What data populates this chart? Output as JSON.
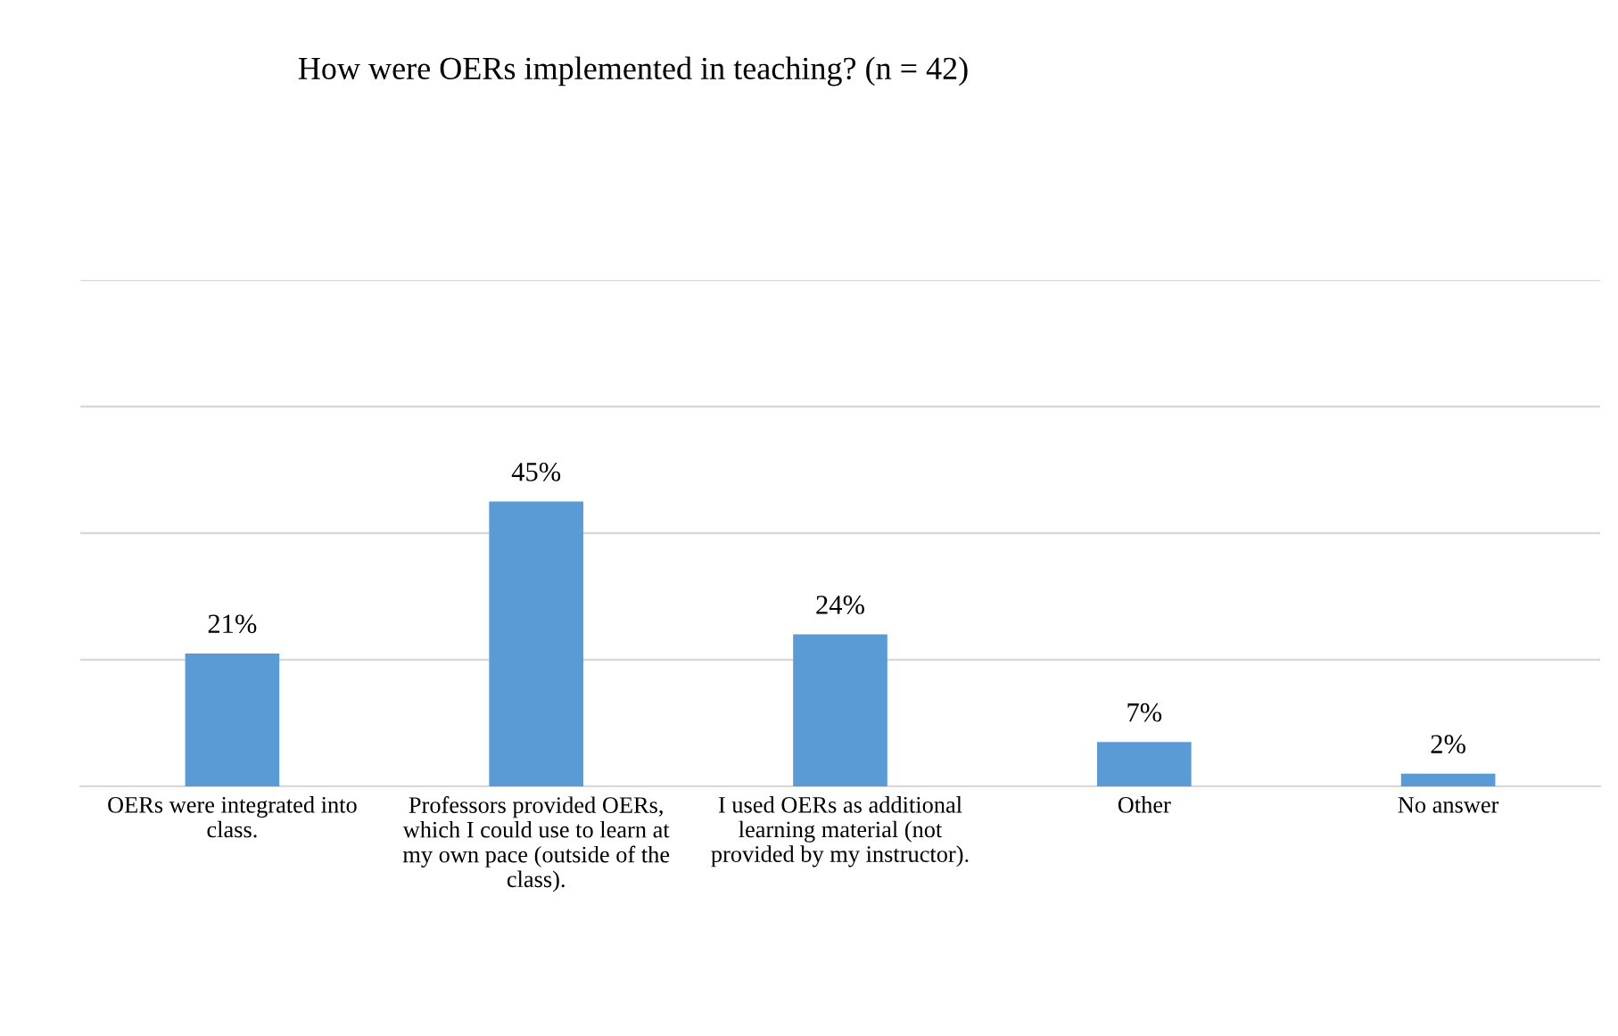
{
  "chart_data": {
    "type": "bar",
    "title": "How were OERs implemented in teaching? (n = 42)",
    "categories": [
      "OERs were integrated into\nclass.",
      "Professors provided OERs,\nwhich I could use to learn at\nmy own pace (outside of the\nclass).",
      "I used OERs as additional\nlearning material (not\nprovided by my instructor).",
      "Other",
      "No answer"
    ],
    "values": [
      21,
      45,
      24,
      7,
      2
    ],
    "value_labels": [
      "21%",
      "45%",
      "24%",
      "7%",
      "2%"
    ],
    "color": "#5b9bd5",
    "ylim": [
      0,
      80
    ],
    "yticks": [
      {
        "value": 0,
        "label": null
      },
      {
        "value": 20,
        "label": null
      },
      {
        "value": 40,
        "label": null
      },
      {
        "value": 60,
        "label": null
      },
      {
        "value": 80,
        "label": null
      }
    ],
    "tick_labels": "x",
    "grid": "y"
  }
}
